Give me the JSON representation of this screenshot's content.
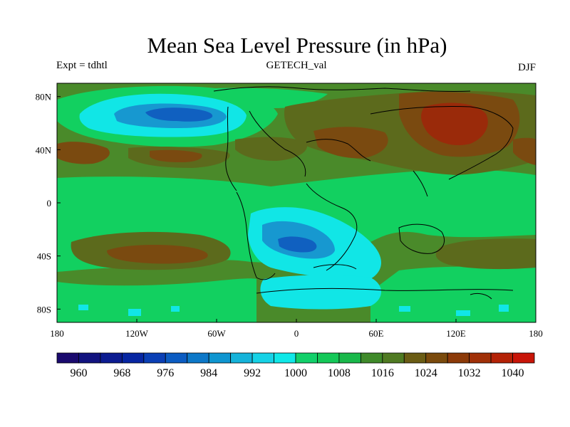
{
  "header": {
    "title": "Mean Sea Level Pressure (in hPa)",
    "left": "Expt = tdhtl",
    "center": "GETECH_val",
    "right": "DJF"
  },
  "axes": {
    "x_ticks": [
      "180",
      "120W",
      "60W",
      "0",
      "60E",
      "120E",
      "180"
    ],
    "y_ticks": [
      "80N",
      "40N",
      "0",
      "40S",
      "80S"
    ]
  },
  "colorbar": {
    "labels": [
      "960",
      "968",
      "976",
      "984",
      "992",
      "1000",
      "1008",
      "1016",
      "1024",
      "1032",
      "1040"
    ],
    "colors": [
      "#1a0a6e",
      "#12137f",
      "#0c1c91",
      "#0726a2",
      "#0a3fb5",
      "#0b5cc2",
      "#0d78c8",
      "#0e95d0",
      "#15b3da",
      "#16d2e6",
      "#0fe8e8",
      "#12d06a",
      "#14c858",
      "#19b84a",
      "#3f8a2a",
      "#4f7a22",
      "#6a5c14",
      "#7a4a0c",
      "#8c3a08",
      "#a03007",
      "#b42206",
      "#c81508"
    ]
  },
  "map": {
    "palette": {
      "lowest": "#1060c0",
      "low": "#1798d0",
      "lowmid": "#11e6e6",
      "mid": "#12d060",
      "midhigh": "#4a8a2a",
      "high": "#5c6a1c",
      "higher": "#7a4a10",
      "highest": "#9a2a0a"
    }
  }
}
